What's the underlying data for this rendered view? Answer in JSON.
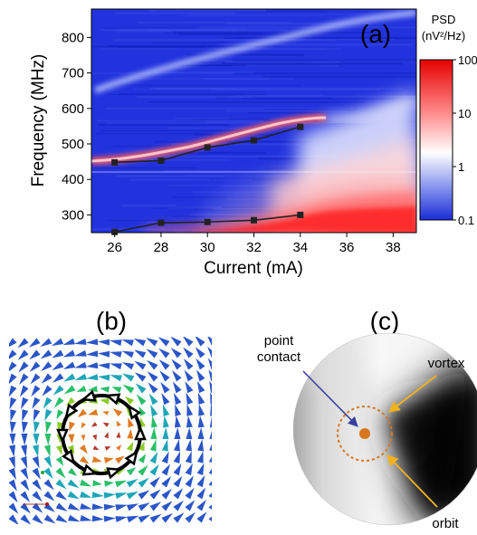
{
  "panel_a": {
    "label": "(a)",
    "chart_data": {
      "type": "heatmap",
      "xlabel": "Current (mA)",
      "ylabel": "Frequency (MHz)",
      "xlim": [
        25,
        39
      ],
      "ylim": [
        250,
        880
      ],
      "x_ticks": [
        26,
        28,
        30,
        32,
        34,
        36,
        38
      ],
      "y_ticks": [
        300,
        400,
        500,
        600,
        700,
        800
      ],
      "colorbar": {
        "title_line1": "PSD",
        "title_line2": "(nV²/Hz)",
        "scale": "log",
        "range": [
          0.1,
          100
        ],
        "ticks": [
          100,
          10,
          1,
          0.1
        ],
        "colors": [
          "#1a2cd8",
          "#ffffff",
          "#e60000"
        ]
      },
      "series": [
        {
          "x": [
            26,
            28,
            30,
            32,
            34
          ],
          "y": [
            448,
            453,
            490,
            510,
            548
          ]
        },
        {
          "x": [
            26,
            28,
            30,
            32,
            34
          ],
          "y": [
            252,
            278,
            280,
            285,
            300
          ]
        }
      ]
    }
  },
  "panel_b": {
    "label": "(b)"
  },
  "panel_c": {
    "label": "(c)",
    "annotations": {
      "point_contact_line1": "point",
      "point_contact_line2": "contact",
      "vortex": "vortex",
      "orbit": "orbit"
    },
    "colors": {
      "orbit": "#d9761e",
      "vortex_arrow": "#f3b21d",
      "point_contact_arrow": "#3a3f9e"
    }
  }
}
